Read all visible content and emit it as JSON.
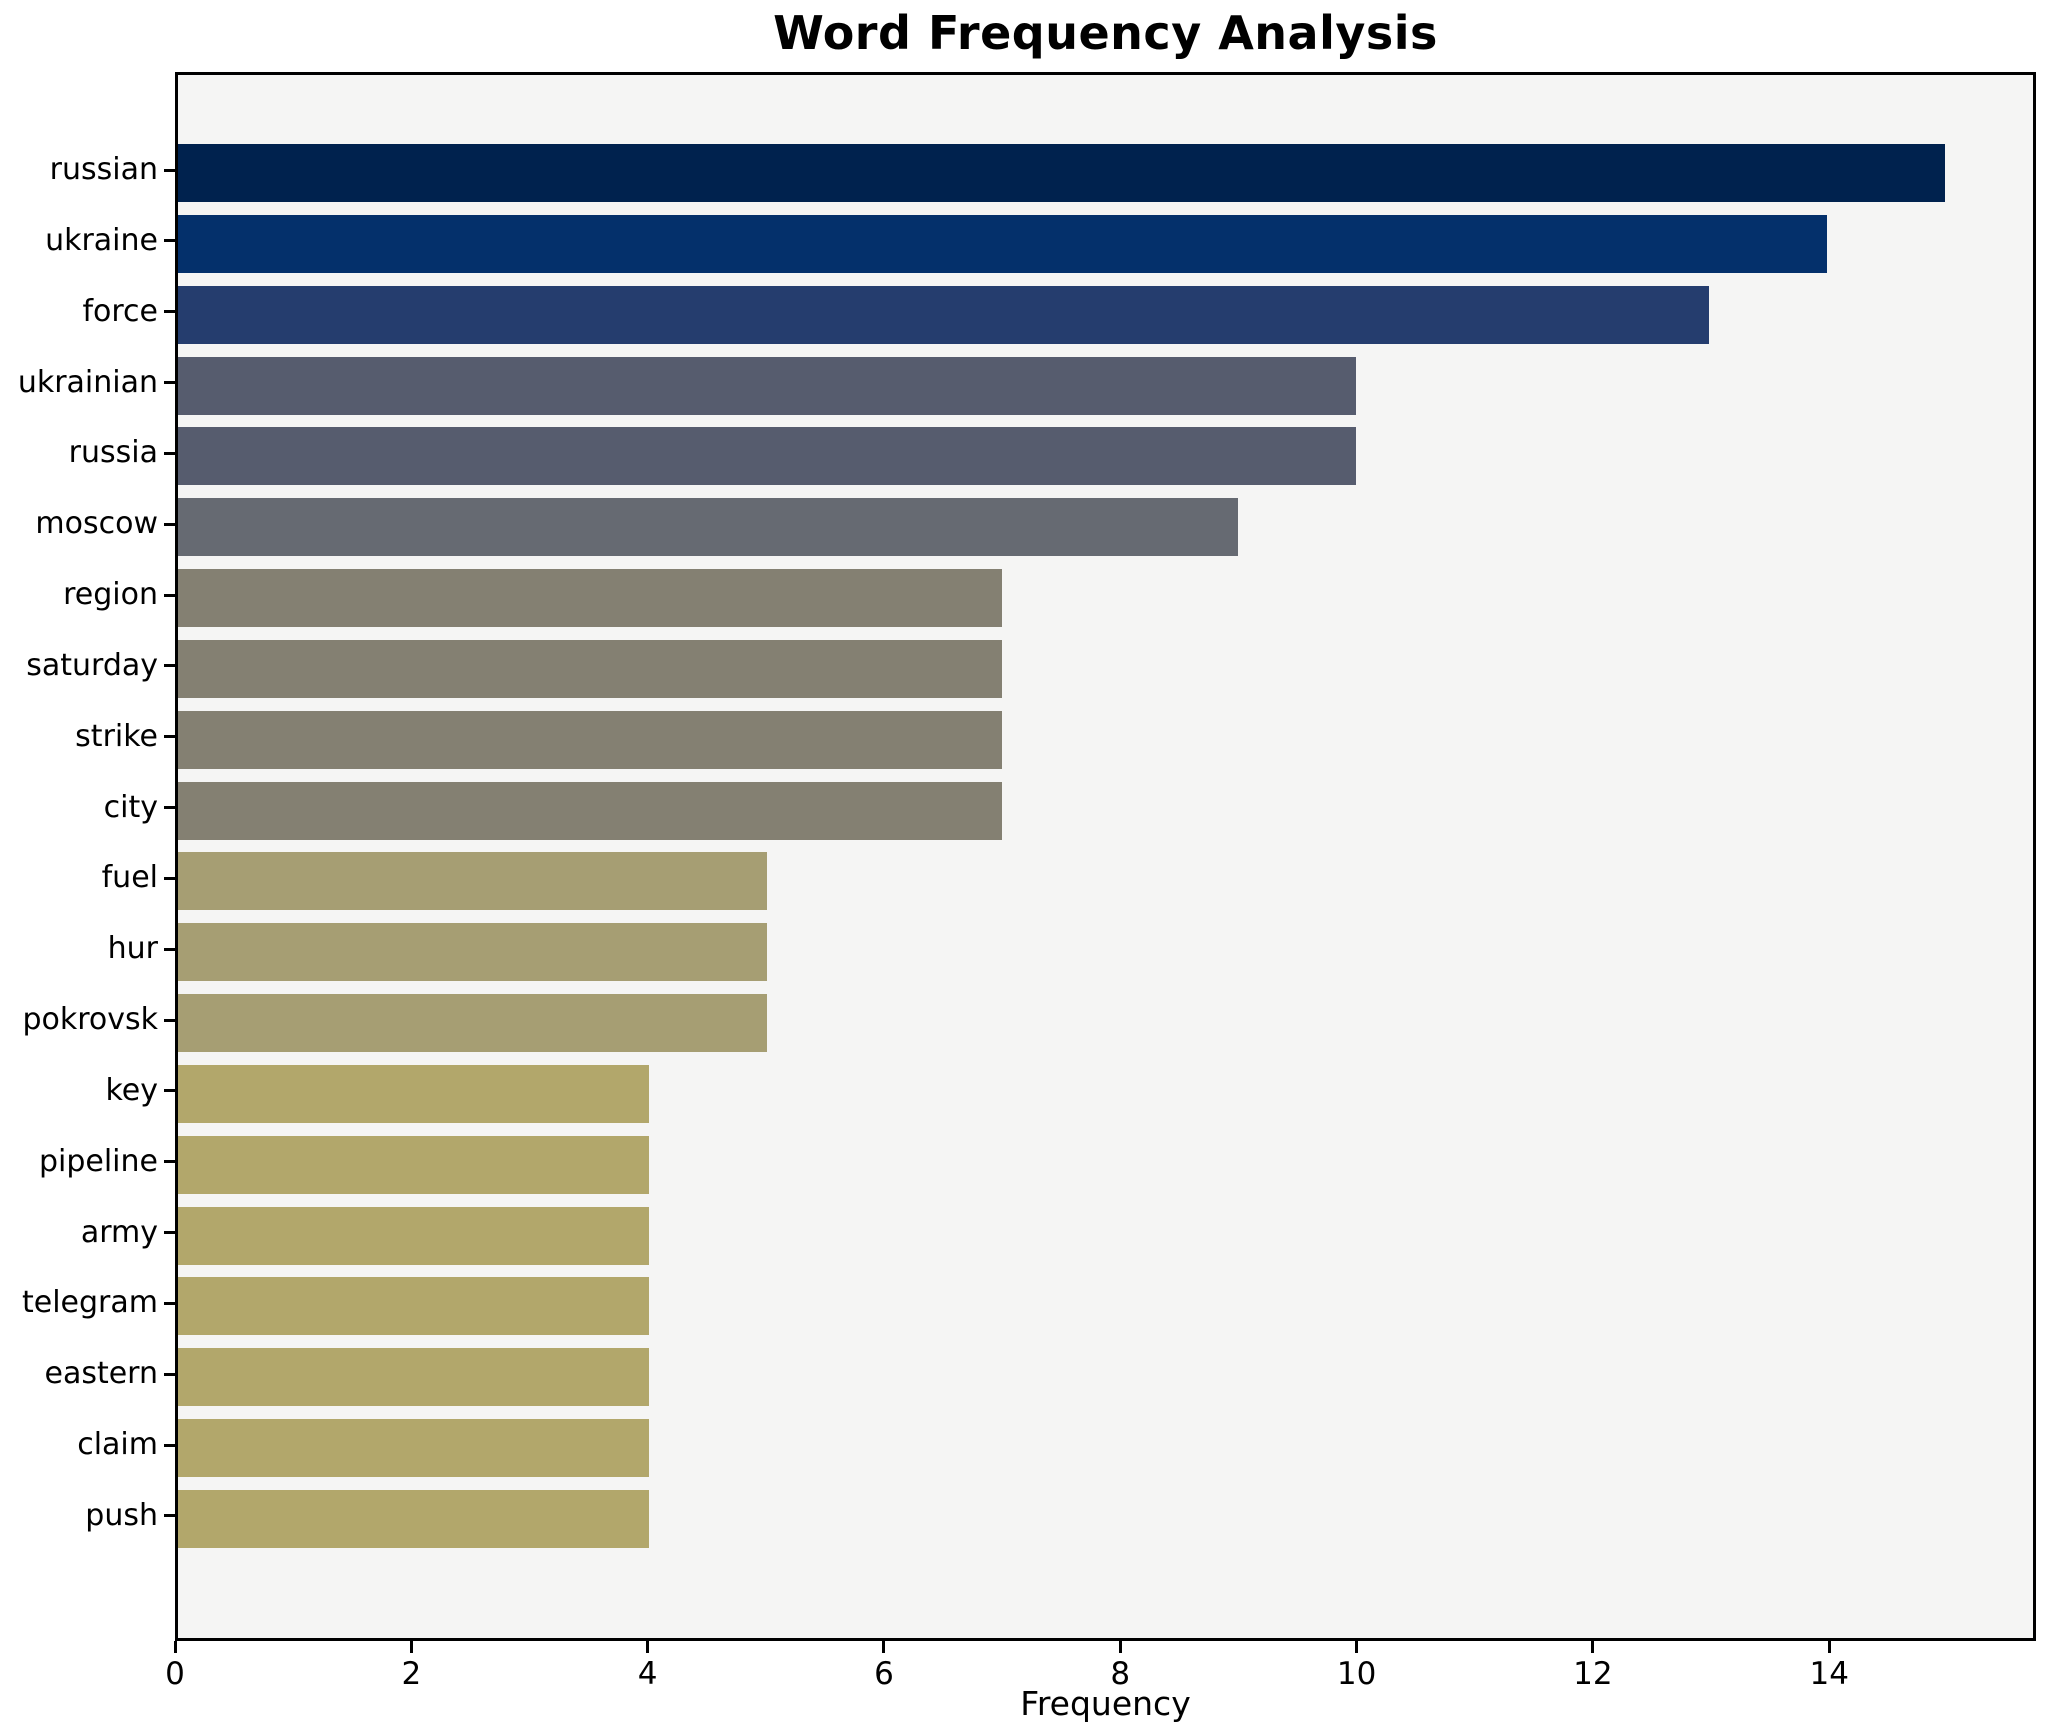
{
  "chart_data": {
    "type": "bar",
    "orientation": "horizontal",
    "title": "Word Frequency Analysis",
    "xlabel": "Frequency",
    "ylabel": "",
    "categories": [
      "russian",
      "ukraine",
      "force",
      "ukrainian",
      "russia",
      "moscow",
      "region",
      "saturday",
      "strike",
      "city",
      "fuel",
      "hur",
      "pokrovsk",
      "key",
      "pipeline",
      "army",
      "telegram",
      "eastern",
      "claim",
      "push"
    ],
    "values": [
      15,
      14,
      13,
      10,
      10,
      9,
      7,
      7,
      7,
      7,
      5,
      5,
      5,
      4,
      4,
      4,
      4,
      4,
      4,
      4
    ],
    "bar_colors": [
      "#00224E",
      "#04306B",
      "#253D6E",
      "#565C6E",
      "#565C6E",
      "#666A72",
      "#848072",
      "#848072",
      "#848072",
      "#848072",
      "#A69E73",
      "#A69E73",
      "#A69E73",
      "#B2A76B",
      "#B2A76B",
      "#B2A76B",
      "#B2A76B",
      "#B2A76B",
      "#B2A76B",
      "#B2A76B"
    ],
    "xlim": [
      0,
      15.75
    ],
    "xticks": [
      0,
      2,
      4,
      6,
      8,
      10,
      12,
      14
    ],
    "grid": false,
    "legend": "none",
    "plot_background": "#f5f5f4",
    "colormap": "cividis"
  }
}
